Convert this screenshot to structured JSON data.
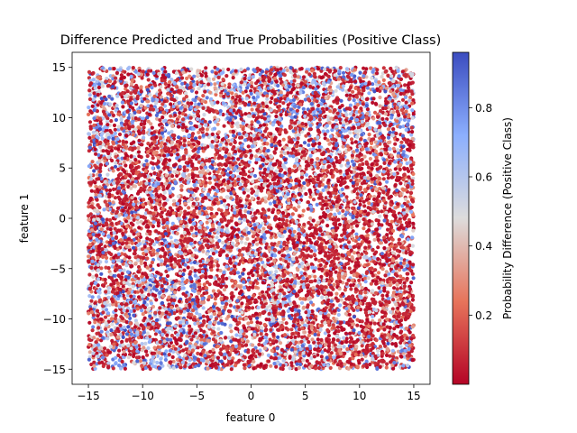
{
  "chart_data": {
    "type": "scatter",
    "title": "Difference Predicted and True Probabilities (Positive Class)",
    "xlabel": "feature 0",
    "ylabel": "feature 1",
    "xlim": [
      -16.5,
      16.5
    ],
    "ylim": [
      -16.5,
      16.5
    ],
    "x_ticks": [
      -15,
      -10,
      -5,
      0,
      5,
      10,
      15
    ],
    "x_tick_labels": [
      "−15",
      "−10",
      "−5",
      "0",
      "5",
      "10",
      "15"
    ],
    "y_ticks": [
      -15,
      -10,
      -5,
      0,
      5,
      10,
      15
    ],
    "y_tick_labels": [
      "−15",
      "−10",
      "−5",
      "0",
      "5",
      "10",
      "15"
    ],
    "point_domain": {
      "x": [
        -15,
        15
      ],
      "y": [
        -15,
        15
      ]
    },
    "approx_point_count": 10000,
    "colormap": "coolwarm",
    "grid": false,
    "colorbar": {
      "label": "Probability Difference (Positive Class)",
      "range": [
        0.0,
        0.96
      ],
      "ticks": [
        0.2,
        0.4,
        0.6,
        0.8
      ],
      "tick_labels": [
        "0.2",
        "0.4",
        "0.6",
        "0.8"
      ]
    }
  }
}
